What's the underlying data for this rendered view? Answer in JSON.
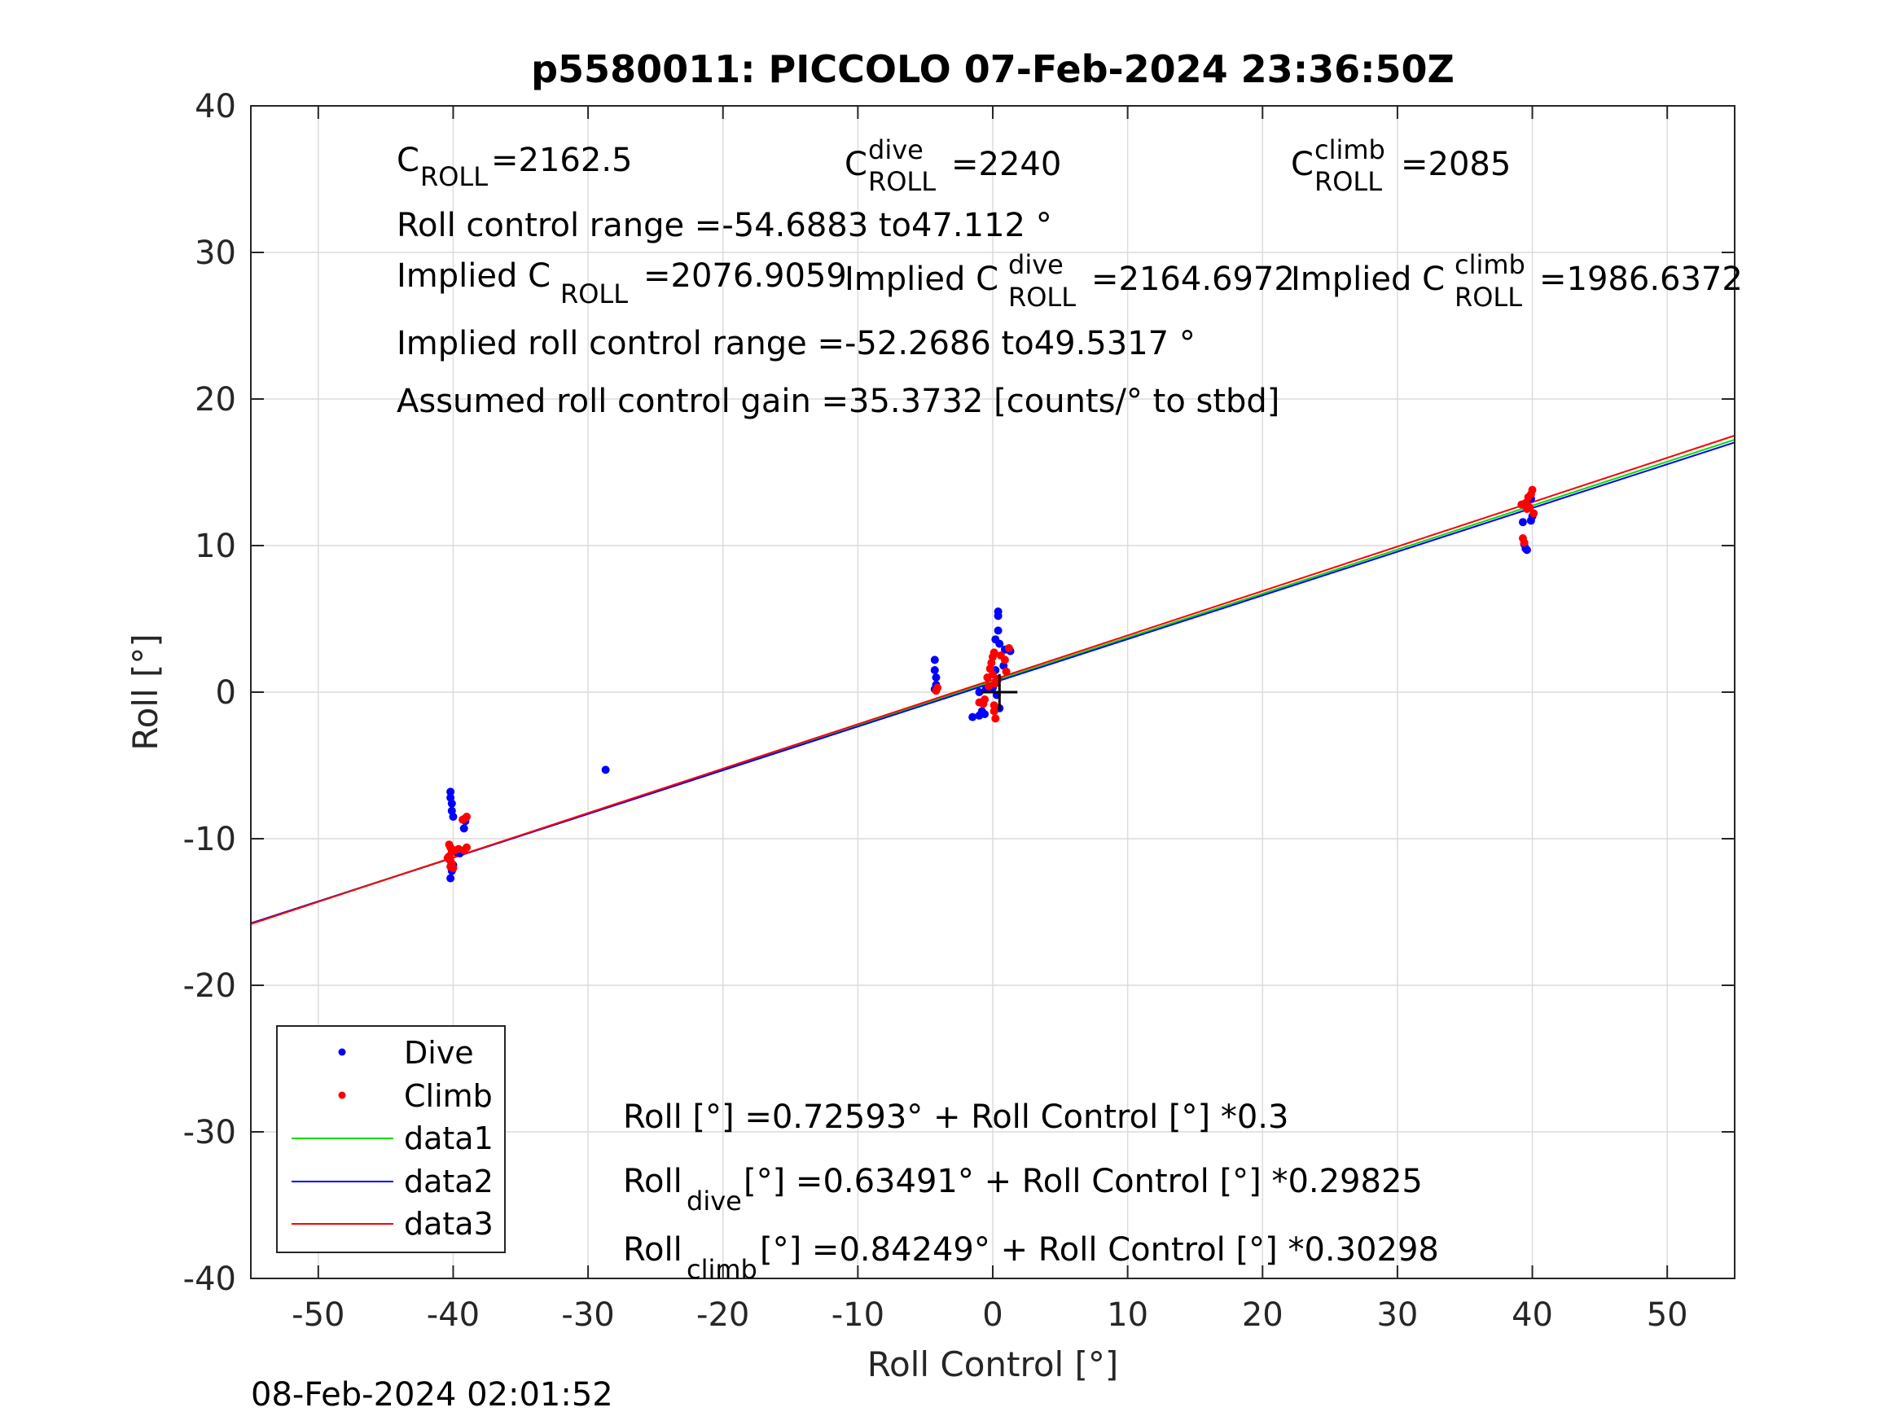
{
  "chart_data": {
    "type": "scatter",
    "title": "p5580011: PICCOLO 07-Feb-2024 23:36:50Z",
    "xlabel": "Roll Control [°]",
    "ylabel": "Roll [°]",
    "xlim": [
      -55,
      55
    ],
    "ylim": [
      -40,
      40
    ],
    "xticks": [
      -50,
      -40,
      -30,
      -20,
      -10,
      0,
      10,
      20,
      30,
      40,
      50
    ],
    "yticks": [
      -40,
      -30,
      -20,
      -10,
      0,
      10,
      20,
      30,
      40
    ],
    "grid": true,
    "legend_placement": "bottom-left",
    "colors": {
      "dive": "#0000ff",
      "climb": "#ff0000",
      "data1": "#00dd00",
      "data2": "#0000ff",
      "data3": "#ff0000",
      "center_mark": "#000000"
    },
    "series": [
      {
        "name": "Dive",
        "kind": "points",
        "points": [
          [
            -40.2,
            -6.8
          ],
          [
            -40.2,
            -7.2
          ],
          [
            -40.1,
            -7.6
          ],
          [
            -40.1,
            -8.1
          ],
          [
            -40.0,
            -8.5
          ],
          [
            -39.2,
            -9.3
          ],
          [
            -39.1,
            -8.8
          ],
          [
            -40.2,
            -12.7
          ],
          [
            -40.1,
            -12.2
          ],
          [
            -40.0,
            -11.8
          ],
          [
            -40.3,
            -11.4
          ],
          [
            -39.8,
            -10.9
          ],
          [
            -39.5,
            -11.0
          ],
          [
            -28.7,
            -5.3
          ],
          [
            -4.3,
            2.2
          ],
          [
            -4.3,
            1.5
          ],
          [
            -4.2,
            1.0
          ],
          [
            -4.2,
            0.5
          ],
          [
            -4.3,
            0.2
          ],
          [
            -1.5,
            -1.7
          ],
          [
            -1.0,
            -1.6
          ],
          [
            -0.6,
            -1.5
          ],
          [
            -0.8,
            -1.3
          ],
          [
            -1.0,
            0.0
          ],
          [
            -0.5,
            0.2
          ],
          [
            0.0,
            0.3
          ],
          [
            0.2,
            3.6
          ],
          [
            0.4,
            4.2
          ],
          [
            0.4,
            5.2
          ],
          [
            0.4,
            5.5
          ],
          [
            0.5,
            3.3
          ],
          [
            0.8,
            1.8
          ],
          [
            0.9,
            2.9
          ],
          [
            1.3,
            2.8
          ],
          [
            0.3,
            -0.2
          ],
          [
            0.5,
            -1.1
          ],
          [
            0.2,
            1.5
          ],
          [
            39.3,
            11.6
          ],
          [
            39.4,
            10.1
          ],
          [
            39.5,
            9.8
          ],
          [
            39.6,
            9.7
          ],
          [
            39.9,
            11.7
          ],
          [
            40.0,
            12.0
          ],
          [
            39.9,
            13.2
          ]
        ]
      },
      {
        "name": "Climb",
        "kind": "points",
        "points": [
          [
            -40.3,
            -10.4
          ],
          [
            -40.2,
            -10.6
          ],
          [
            -40.1,
            -10.9
          ],
          [
            -40.3,
            -11.2
          ],
          [
            -40.2,
            -11.5
          ],
          [
            -40.1,
            -11.7
          ],
          [
            -40.0,
            -12.0
          ],
          [
            -40.2,
            -11.9
          ],
          [
            -39.9,
            -10.8
          ],
          [
            -39.6,
            -10.7
          ],
          [
            -39.3,
            -8.7
          ],
          [
            -39.1,
            -8.6
          ],
          [
            -39.0,
            -8.5
          ],
          [
            -39.2,
            -10.8
          ],
          [
            -39.0,
            -10.6
          ],
          [
            -40.4,
            -11.3
          ],
          [
            -4.2,
            0.1
          ],
          [
            -4.1,
            0.3
          ],
          [
            -1.0,
            -0.7
          ],
          [
            -0.7,
            -0.8
          ],
          [
            -0.6,
            -0.5
          ],
          [
            -0.4,
            1.0
          ],
          [
            -0.2,
            1.6
          ],
          [
            -0.1,
            2.0
          ],
          [
            0.0,
            2.4
          ],
          [
            0.1,
            2.7
          ],
          [
            0.0,
            1.2
          ],
          [
            0.2,
            0.6
          ],
          [
            0.1,
            -0.9
          ],
          [
            0.1,
            -1.3
          ],
          [
            0.2,
            -1.8
          ],
          [
            0.6,
            2.5
          ],
          [
            0.9,
            2.2
          ],
          [
            1.2,
            3.0
          ],
          [
            1.0,
            1.4
          ],
          [
            -0.3,
            0.4
          ],
          [
            0.4,
            0.9
          ],
          [
            39.3,
            10.5
          ],
          [
            39.4,
            10.2
          ],
          [
            39.2,
            12.8
          ],
          [
            39.5,
            12.9
          ],
          [
            39.7,
            13.3
          ],
          [
            39.9,
            13.5
          ],
          [
            40.0,
            13.8
          ],
          [
            39.8,
            12.6
          ],
          [
            40.1,
            12.2
          ],
          [
            39.6,
            12.5
          ]
        ]
      },
      {
        "name": "data1",
        "kind": "line",
        "intercept": 0.72593,
        "slope": 0.3
      },
      {
        "name": "data2",
        "kind": "line",
        "intercept": 0.63491,
        "slope": 0.29825
      },
      {
        "name": "data3",
        "kind": "line",
        "intercept": 0.84249,
        "slope": 0.30298
      }
    ],
    "center_mark": [
      0.5,
      0.0
    ],
    "legend": [
      "Dive",
      "Climb",
      "data1",
      "data2",
      "data3"
    ]
  },
  "annotations": {
    "c_roll": {
      "C": "C",
      "sub": "ROLL",
      "value": "=2162.5"
    },
    "c_roll_dive": {
      "C": "C",
      "sup": "dive",
      "sub": "ROLL",
      "value": "=2240"
    },
    "c_roll_climb": {
      "C": "C",
      "sup": "climb",
      "sub": "ROLL",
      "value": "=2085"
    },
    "roll_control_range": "Roll control range =-54.6883 to47.112 °",
    "implied_c_roll": {
      "prefix": "Implied C",
      "sub": "ROLL",
      "value": "=2076.9059"
    },
    "implied_c_roll_dive": {
      "prefix": "Implied C",
      "sup": "dive",
      "sub": "ROLL",
      "value": "=2164.6972"
    },
    "implied_c_roll_climb": {
      "prefix": "Implied C",
      "sup": "climb",
      "sub": "ROLL",
      "value": "=1986.6372"
    },
    "implied_range": "Implied roll control range =-52.2686 to49.5317 °",
    "assumed_gain": "Assumed roll control gain =35.3732 [counts/° to stbd]",
    "fit_all": "Roll [°] =0.72593° + Roll Control [°] *0.3",
    "fit_dive": {
      "label": "Roll",
      "sub": "dive",
      "rest": " [°] =0.63491° + Roll Control [°] *0.29825"
    },
    "fit_climb": {
      "label": "Roll",
      "sub": "climb",
      "rest": " [°] =0.84249° + Roll Control [°] *0.30298"
    }
  },
  "timestamp": "08-Feb-2024 02:01:52"
}
